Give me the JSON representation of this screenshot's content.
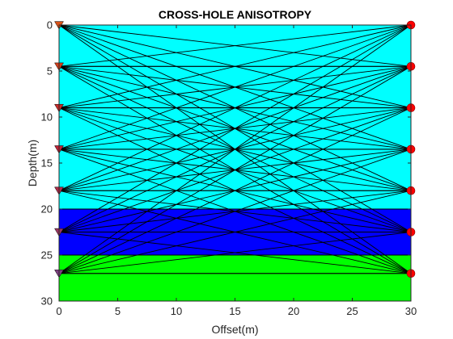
{
  "chart_data": {
    "type": "scatter",
    "title": "CROSS-HOLE ANISOTROPY",
    "xlabel": "Offset(m)",
    "ylabel": "Depth(m)",
    "xlim": [
      0,
      30
    ],
    "ylim": [
      0,
      30
    ],
    "y_reversed": true,
    "x_ticks": [
      "0",
      "5",
      "10",
      "15",
      "20",
      "25",
      "30"
    ],
    "y_ticks": [
      "0",
      "5",
      "10",
      "15",
      "20",
      "25",
      "30"
    ],
    "grid": false,
    "layers": [
      {
        "top": 0,
        "bottom": 20,
        "color": "#00ffff"
      },
      {
        "top": 20,
        "bottom": 25,
        "color": "#0000ff"
      },
      {
        "top": 25,
        "bottom": 30,
        "color": "#00ff00"
      }
    ],
    "layer_boundaries": [
      4.5,
      9,
      13.5,
      18,
      20,
      22.5,
      25,
      27
    ],
    "series": [
      {
        "marker": "triangle-down",
        "x": [
          0,
          0,
          0,
          0,
          0,
          0,
          0
        ],
        "y": [
          0,
          4.5,
          9,
          13.5,
          18,
          22.5,
          27
        ]
      },
      {
        "marker": "circle",
        "x": [
          30,
          30,
          30,
          30,
          30,
          30,
          30
        ],
        "y": [
          0,
          4.5,
          9,
          13.5,
          18,
          22.5,
          27
        ]
      }
    ],
    "rays": "all source-receiver pairs",
    "colors": {
      "ray": "#000000",
      "source_fill": "#d95319",
      "receiver_fill": "#ff0000",
      "boundary": "#000000"
    }
  }
}
